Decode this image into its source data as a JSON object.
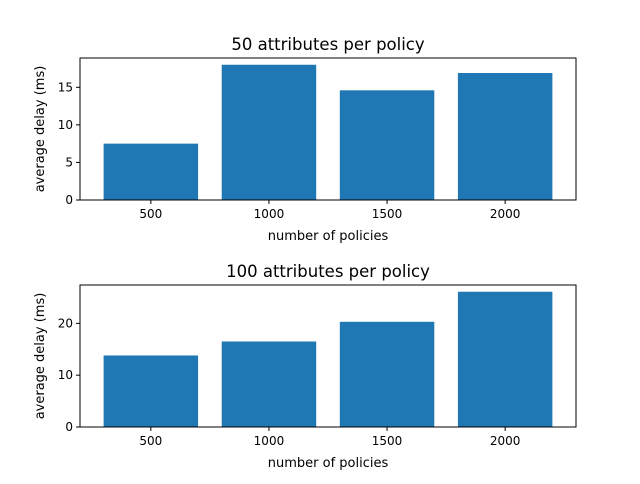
{
  "colors": {
    "bar": "#1f77b4",
    "axis": "#000000",
    "background": "#ffffff"
  },
  "chart_data": [
    {
      "type": "bar",
      "title": "50 attributes per policy",
      "xlabel": "number of policies",
      "ylabel": "average delay (ms)",
      "categories": [
        "500",
        "1000",
        "1500",
        "2000"
      ],
      "values": [
        7.5,
        18.0,
        14.6,
        16.9
      ],
      "ylim": [
        0,
        18.9
      ],
      "yticks": [
        0,
        5,
        10,
        15
      ],
      "grid": false,
      "legend": "none"
    },
    {
      "type": "bar",
      "title": "100 attributes per policy",
      "xlabel": "number of policies",
      "ylabel": "average delay (ms)",
      "categories": [
        "500",
        "1000",
        "1500",
        "2000"
      ],
      "values": [
        13.8,
        16.5,
        20.3,
        26.1
      ],
      "ylim": [
        0,
        27.4
      ],
      "yticks": [
        0,
        10,
        20
      ],
      "grid": false,
      "legend": "none"
    }
  ]
}
